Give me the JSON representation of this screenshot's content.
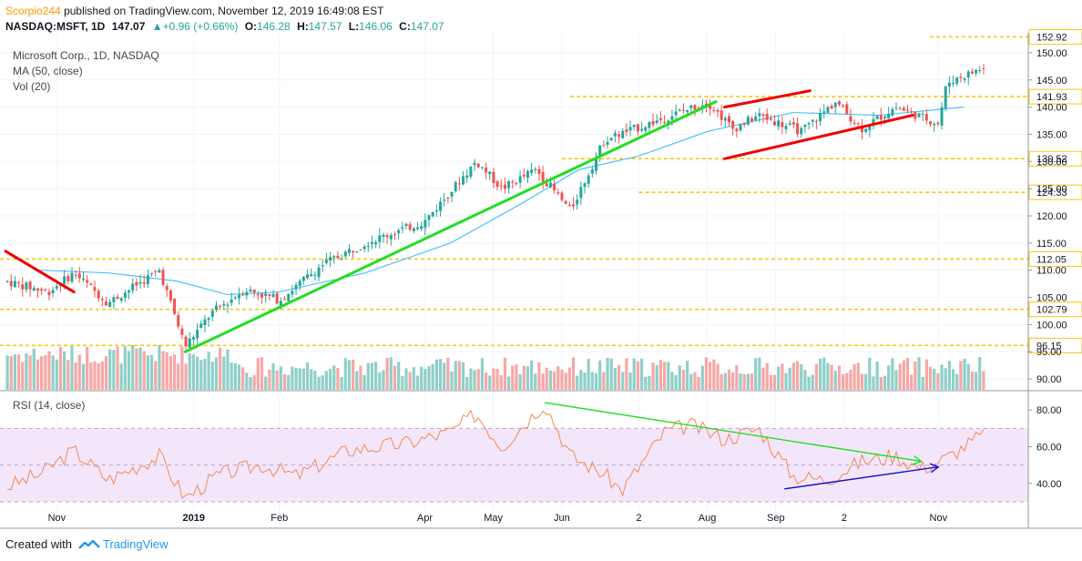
{
  "header": {
    "author": "Scorpio244",
    "published_text": "published on TradingView.com, November 12, 2019 16:49:08 EST",
    "symbol": "NASDAQ:MSFT, 1D",
    "last": "147.07",
    "change": "▲+0.96 (+0.66%)",
    "open_label": "O:",
    "open": "146.28",
    "high_label": "H:",
    "high": "147.57",
    "low_label": "L:",
    "low": "146.06",
    "close_label": "C:",
    "close": "147.07"
  },
  "indicators": {
    "title": "Microsoft Corp., 1D, NASDAQ",
    "ma": "MA (50, close)",
    "vol": "Vol (20)",
    "rsi": "RSI (14, close)"
  },
  "footer": {
    "created_with": "Created with",
    "brand": "TradingView"
  },
  "colors": {
    "up": "#26a69a",
    "down": "#ef5350",
    "vol_up": "#8fcfc9",
    "vol_down": "#f5a8a6",
    "ma": "#4fc3f7",
    "level": "#f9c715",
    "trend_green": "#22dd22",
    "trend_red": "#ee0000",
    "rsi_line": "#f48a52",
    "rsi_band": "#f3e6fb",
    "rsi_arrow_green": "#22dd22",
    "rsi_arrow_blue": "#1010cc"
  },
  "chart_data": [
    {
      "type": "candlestick",
      "title": "Microsoft Corp., 1D, NASDAQ",
      "price_axis": {
        "min": 88,
        "max": 153,
        "ticks": [
          90,
          95,
          100,
          105,
          110,
          115,
          120,
          125,
          130,
          135,
          140,
          145,
          150
        ]
      },
      "x_axis_labels": [
        "Nov",
        "2019",
        "Feb",
        "Apr",
        "May",
        "Jun",
        "2",
        "Aug",
        "Sep",
        "2",
        "Nov"
      ],
      "horizontal_levels": [
        "152.92",
        "141.93",
        "130.52",
        "124.33",
        "112.05",
        "102.79",
        "96.15"
      ],
      "moving_average": {
        "name": "MA (50, close)",
        "points": [
          [
            2018.82,
            110.0
          ],
          [
            2018.9,
            109.5
          ],
          [
            2018.98,
            108.0
          ],
          [
            2019.04,
            105.5
          ],
          [
            2019.1,
            106.0
          ],
          [
            2019.2,
            109.5
          ],
          [
            2019.3,
            115.0
          ],
          [
            2019.38,
            122.0
          ],
          [
            2019.45,
            128.5
          ],
          [
            2019.52,
            131.0
          ],
          [
            2019.6,
            135.5
          ],
          [
            2019.7,
            139.0
          ],
          [
            2019.8,
            138.5
          ],
          [
            2019.9,
            140.0
          ]
        ]
      },
      "price_path": [
        [
          2018.78,
          108.0
        ],
        [
          2018.83,
          106.0
        ],
        [
          2018.86,
          109.5
        ],
        [
          2018.9,
          104.0
        ],
        [
          2018.96,
          110.0
        ],
        [
          2018.99,
          96.0
        ],
        [
          2019.02,
          102.0
        ],
        [
          2019.06,
          106.5
        ],
        [
          2019.1,
          104.5
        ],
        [
          2019.15,
          111.0
        ],
        [
          2019.2,
          115.0
        ],
        [
          2019.27,
          119.0
        ],
        [
          2019.33,
          130.0
        ],
        [
          2019.36,
          125.0
        ],
        [
          2019.4,
          128.5
        ],
        [
          2019.44,
          121.0
        ],
        [
          2019.48,
          134.0
        ],
        [
          2019.55,
          138.0
        ],
        [
          2019.6,
          141.0
        ],
        [
          2019.63,
          136.0
        ],
        [
          2019.66,
          138.5
        ],
        [
          2019.71,
          135.5
        ],
        [
          2019.75,
          141.0
        ],
        [
          2019.78,
          136.0
        ],
        [
          2019.82,
          140.0
        ],
        [
          2019.87,
          137.0
        ],
        [
          2019.88,
          144.5
        ],
        [
          2019.92,
          147.07
        ]
      ],
      "trendlines": [
        {
          "color": "green",
          "from": [
            2018.99,
            95.0
          ],
          "to": [
            2019.61,
            141.0
          ]
        },
        {
          "color": "red",
          "from": [
            2018.78,
            113.5
          ],
          "to": [
            2018.86,
            106.0
          ]
        },
        {
          "color": "red",
          "from": [
            2019.62,
            140.0
          ],
          "to": [
            2019.72,
            143.0
          ]
        },
        {
          "color": "red",
          "from": [
            2019.62,
            130.5
          ],
          "to": [
            2019.84,
            138.5
          ]
        }
      ]
    },
    {
      "type": "line",
      "title": "RSI (14, close)",
      "y_axis": {
        "min": 28,
        "max": 90,
        "ticks": [
          40.0,
          60.0,
          80.0
        ],
        "band": [
          30,
          70
        ]
      },
      "series": [
        {
          "values": [
            [
              2018.78,
              38
            ],
            [
              2018.82,
              45
            ],
            [
              2018.86,
              58
            ],
            [
              2018.9,
              42
            ],
            [
              2018.96,
              55
            ],
            [
              2018.99,
              32
            ],
            [
              2019.03,
              45
            ],
            [
              2019.08,
              50
            ],
            [
              2019.12,
              44
            ],
            [
              2019.18,
              58
            ],
            [
              2019.25,
              62
            ],
            [
              2019.3,
              68
            ],
            [
              2019.33,
              78
            ],
            [
              2019.36,
              60
            ],
            [
              2019.41,
              84
            ],
            [
              2019.44,
              55
            ],
            [
              2019.48,
              45
            ],
            [
              2019.5,
              36
            ],
            [
              2019.55,
              68
            ],
            [
              2019.58,
              72
            ],
            [
              2019.62,
              64
            ],
            [
              2019.66,
              70
            ],
            [
              2019.7,
              44
            ],
            [
              2019.74,
              42
            ],
            [
              2019.78,
              52
            ],
            [
              2019.82,
              55
            ],
            [
              2019.85,
              48
            ],
            [
              2019.88,
              54
            ],
            [
              2019.92,
              66
            ]
          ]
        }
      ],
      "trendlines": [
        {
          "color": "green",
          "from": [
            2019.41,
            84
          ],
          "to": [
            2019.85,
            52
          ]
        },
        {
          "color": "blue",
          "from": [
            2019.69,
            37
          ],
          "to": [
            2019.87,
            49
          ]
        }
      ]
    }
  ]
}
